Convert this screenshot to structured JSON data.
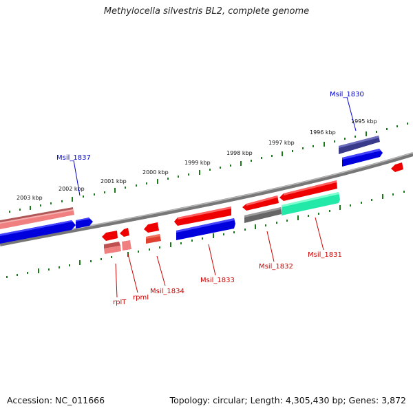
{
  "title": "Methylocella silvestris BL2, complete genome",
  "footer": {
    "accession": "Accession: NC_011666",
    "summary": "Topology: circular; Length: 4,305,430 bp; Genes: 3,872"
  },
  "ticks": [
    "2003 kbp",
    "2002 kbp",
    "2001 kbp",
    "2000 kbp",
    "1999 kbp",
    "1998 kbp",
    "1997 kbp",
    "1996 kbp",
    "1995 kbp"
  ],
  "labels": {
    "msil_1830": "Msil_1830",
    "msil_1837": "Msil_1837",
    "rplT": "rplT",
    "rpmI": "rpmI",
    "msil_1834": "Msil_1834",
    "msil_1833": "Msil_1833",
    "msil_1832": "Msil_1832",
    "msil_1831": "Msil_1831"
  },
  "colors": {
    "forward_label": "#0000cc",
    "reverse_label": "#cc0000",
    "tick": "#1a7a1a",
    "backbone": "#808080",
    "red": "#ee0000",
    "blue": "#0000dd",
    "pink": "#f08080",
    "gray": "#666666",
    "teal": "#22e8a8",
    "navy": "#3a3a8a"
  }
}
